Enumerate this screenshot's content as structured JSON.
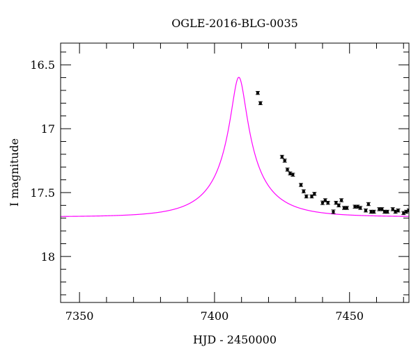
{
  "chart_data": {
    "type": "scatter",
    "title": "OGLE-2016-BLG-0035",
    "xlabel": "HJD - 2450000",
    "ylabel": "I magnitude",
    "xlim": [
      7343,
      7472
    ],
    "ylim": [
      18.36,
      16.33
    ],
    "y_inverted": true,
    "x_major_ticks": [
      7350,
      7400,
      7450
    ],
    "x_tick_labels": [
      "7350",
      "7400",
      "7450"
    ],
    "y_major_ticks": [
      16.5,
      17,
      17.5,
      18
    ],
    "y_tick_labels": [
      "16.5",
      "17",
      "17.5",
      "18"
    ],
    "grid": false,
    "colors": {
      "model": "#ff00ff",
      "points": "#000000"
    },
    "model": {
      "type": "microlensing-fit-curve",
      "t0": 7409,
      "u0": 0.14,
      "tE": 19,
      "baseline_mag": 17.69,
      "fs": 0.28
    },
    "points": [
      {
        "x": 7416.0,
        "y": 16.72,
        "err": 0.012
      },
      {
        "x": 7417.0,
        "y": 16.8,
        "err": 0.012
      },
      {
        "x": 7425.0,
        "y": 17.22,
        "err": 0.012
      },
      {
        "x": 7426.0,
        "y": 17.25,
        "err": 0.012
      },
      {
        "x": 7427.0,
        "y": 17.32,
        "err": 0.012
      },
      {
        "x": 7428.0,
        "y": 17.35,
        "err": 0.012
      },
      {
        "x": 7429.0,
        "y": 17.36,
        "err": 0.012
      },
      {
        "x": 7432.0,
        "y": 17.44,
        "err": 0.012
      },
      {
        "x": 7433.0,
        "y": 17.49,
        "err": 0.012
      },
      {
        "x": 7434.0,
        "y": 17.53,
        "err": 0.012
      },
      {
        "x": 7436.0,
        "y": 17.53,
        "err": 0.012
      },
      {
        "x": 7437.0,
        "y": 17.51,
        "err": 0.012
      },
      {
        "x": 7440.0,
        "y": 17.58,
        "err": 0.014
      },
      {
        "x": 7441.0,
        "y": 17.56,
        "err": 0.012
      },
      {
        "x": 7442.0,
        "y": 17.58,
        "err": 0.012
      },
      {
        "x": 7444.0,
        "y": 17.65,
        "err": 0.014
      },
      {
        "x": 7445.0,
        "y": 17.58,
        "err": 0.012
      },
      {
        "x": 7446.0,
        "y": 17.6,
        "err": 0.012
      },
      {
        "x": 7447.0,
        "y": 17.56,
        "err": 0.012
      },
      {
        "x": 7448.0,
        "y": 17.62,
        "err": 0.012
      },
      {
        "x": 7449.0,
        "y": 17.62,
        "err": 0.012
      },
      {
        "x": 7452.0,
        "y": 17.61,
        "err": 0.012
      },
      {
        "x": 7453.0,
        "y": 17.61,
        "err": 0.012
      },
      {
        "x": 7454.0,
        "y": 17.62,
        "err": 0.012
      },
      {
        "x": 7456.0,
        "y": 17.64,
        "err": 0.012
      },
      {
        "x": 7457.0,
        "y": 17.59,
        "err": 0.012
      },
      {
        "x": 7458.0,
        "y": 17.65,
        "err": 0.012
      },
      {
        "x": 7459.0,
        "y": 17.65,
        "err": 0.012
      },
      {
        "x": 7461.0,
        "y": 17.63,
        "err": 0.012
      },
      {
        "x": 7462.0,
        "y": 17.63,
        "err": 0.012
      },
      {
        "x": 7463.0,
        "y": 17.65,
        "err": 0.012
      },
      {
        "x": 7464.0,
        "y": 17.65,
        "err": 0.012
      },
      {
        "x": 7466.0,
        "y": 17.63,
        "err": 0.012
      },
      {
        "x": 7467.0,
        "y": 17.65,
        "err": 0.012
      },
      {
        "x": 7468.0,
        "y": 17.64,
        "err": 0.012
      },
      {
        "x": 7470.0,
        "y": 17.66,
        "err": 0.012
      },
      {
        "x": 7471.0,
        "y": 17.65,
        "err": 0.012
      },
      {
        "x": 7472.0,
        "y": 17.64,
        "err": 0.012
      }
    ]
  }
}
